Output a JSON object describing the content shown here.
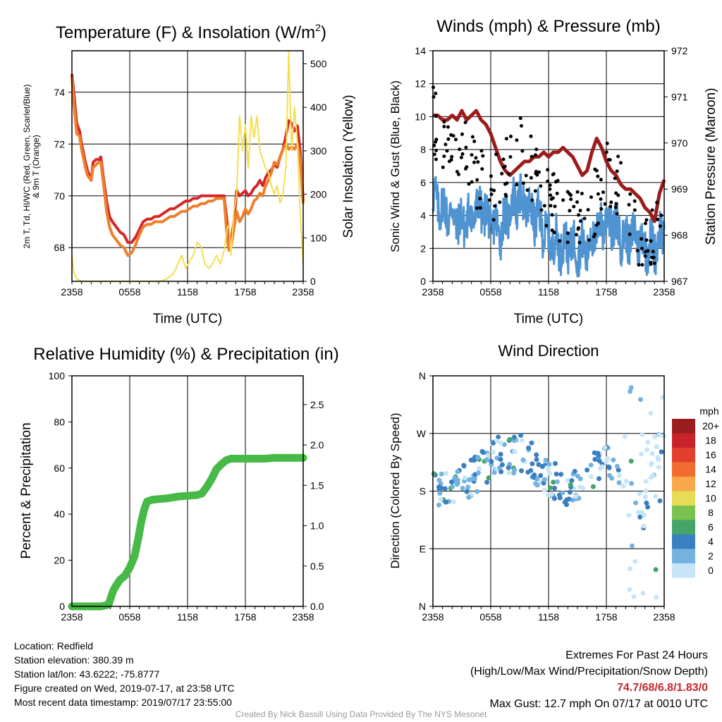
{
  "chart_data": [
    {
      "type": "line",
      "title": "Temperature (F) & Insolation (W/m2)",
      "title_main": "Temperature (F) & Insolation (W/m",
      "title_sup": "2",
      "title_end": ")",
      "xlabel": "Time (UTC)",
      "ylabel_line1": "2m T, Td, HI/WC (Red, Green, Scarlet/Blue)",
      "ylabel_line2": "& 9m T (Orange)",
      "y2label": "Solar Insolation (Yellow)",
      "x_ticks": [
        "2358",
        "0558",
        "1158",
        "1758",
        "2358"
      ],
      "ylim": [
        66.7,
        75.6
      ],
      "y_ticks": [
        "68",
        "70",
        "72",
        "74"
      ],
      "y_tick_values": [
        68,
        70,
        72,
        74
      ],
      "y2lim": [
        0,
        530
      ],
      "y2_ticks": [
        "0",
        "100",
        "200",
        "300",
        "400",
        "500"
      ],
      "y2_tick_values": [
        0,
        100,
        200,
        300,
        400,
        500
      ],
      "x_hours": [
        0,
        0.2,
        0.5,
        0.8,
        1.0,
        1.4,
        1.6,
        1.8,
        2.0,
        2.2,
        2.5,
        2.8,
        3.0,
        3.3,
        3.6,
        3.9,
        4.2,
        4.6,
        5.0,
        5.4,
        5.8,
        6.2,
        6.6,
        7.0,
        7.4,
        7.8,
        8.2,
        8.6,
        9.0,
        9.4,
        9.8,
        10.2,
        10.6,
        11.0,
        11.4,
        11.8,
        12.2,
        12.6,
        13.0,
        13.4,
        13.8,
        14.2,
        14.6,
        15.0,
        15.4,
        15.8,
        16.1,
        16.3,
        16.5,
        16.8,
        17.1,
        17.4,
        17.7,
        18.0,
        18.3,
        18.6,
        18.9,
        19.2,
        19.5,
        19.8,
        20.1,
        20.4,
        20.7,
        21.0,
        21.3,
        21.6,
        21.9,
        22.2,
        22.5,
        22.8,
        23.1,
        23.4,
        23.7,
        24.0
      ],
      "series": [
        {
          "name": "2m T",
          "color": "#d62728",
          "values": [
            74.7,
            74.0,
            72.8,
            72.5,
            72.0,
            71.3,
            71.0,
            70.8,
            70.6,
            71.3,
            71.4,
            71.4,
            71.5,
            70.6,
            69.8,
            69.2,
            69.0,
            68.8,
            68.6,
            68.5,
            68.2,
            68.2,
            68.4,
            68.7,
            69.0,
            69.1,
            69.1,
            69.2,
            69.2,
            69.3,
            69.4,
            69.5,
            69.5,
            69.6,
            69.7,
            69.8,
            69.8,
            69.9,
            69.9,
            70.0,
            70.0,
            70.0,
            70.0,
            70.0,
            70.0,
            70.0,
            69.0,
            68.0,
            68.2,
            69.0,
            70.2,
            70.0,
            70.1,
            70.2,
            70.0,
            70.1,
            70.3,
            70.4,
            70.6,
            70.4,
            70.7,
            70.9,
            71.0,
            71.2,
            71.1,
            71.5,
            71.8,
            72.3,
            72.9,
            72.8,
            72.5,
            72.7,
            71.7,
            69.8
          ]
        },
        {
          "name": "9m T",
          "color": "#ef7f2c",
          "values": [
            74.6,
            73.6,
            72.4,
            72.3,
            71.8,
            71.1,
            70.8,
            70.7,
            70.6,
            71.1,
            71.2,
            71.3,
            71.3,
            70.4,
            69.4,
            68.8,
            68.5,
            68.3,
            68.1,
            68.0,
            67.7,
            67.8,
            68.1,
            68.5,
            68.8,
            68.9,
            68.9,
            69.0,
            69.0,
            69.0,
            69.1,
            69.2,
            69.2,
            69.3,
            69.4,
            69.4,
            69.5,
            69.6,
            69.6,
            69.7,
            69.7,
            69.8,
            69.8,
            69.9,
            69.9,
            69.9,
            68.4,
            67.9,
            68.0,
            68.7,
            69.4,
            69.0,
            69.2,
            69.5,
            69.3,
            69.5,
            69.8,
            69.9,
            70.1,
            70.0,
            70.4,
            70.6,
            70.9,
            71.3,
            71.2,
            71.5,
            71.8,
            72.0,
            71.8,
            71.9,
            71.8,
            72.0,
            71.4,
            69.7
          ]
        },
        {
          "name": "Solar Insolation",
          "color": "#f5de52",
          "axis": "y2",
          "values": [
            60,
            20,
            5,
            2,
            0,
            0,
            0,
            0,
            0,
            0,
            0,
            0,
            0,
            0,
            0,
            0,
            0,
            0,
            0,
            0,
            0,
            0,
            0,
            0,
            0,
            0,
            0,
            0,
            0,
            2,
            5,
            12,
            20,
            40,
            60,
            30,
            45,
            60,
            90,
            80,
            40,
            30,
            40,
            60,
            40,
            70,
            120,
            130,
            60,
            160,
            200,
            380,
            300,
            360,
            260,
            380,
            330,
            380,
            300,
            280,
            260,
            250,
            220,
            200,
            220,
            180,
            200,
            260,
            540,
            300,
            400,
            320,
            150,
            40
          ]
        }
      ]
    },
    {
      "type": "scatter",
      "title": "Winds (mph) & Pressure (mb)",
      "xlabel": "Time (UTC)",
      "ylabel": "Sonic Wind & Gust (Blue, Black)",
      "y2label": "Station Pressure (Maroon)",
      "x_ticks": [
        "2358",
        "0558",
        "1158",
        "1758",
        "2358"
      ],
      "ylim": [
        0,
        14
      ],
      "y_ticks": [
        "0",
        "2",
        "4",
        "6",
        "8",
        "10",
        "12",
        "14"
      ],
      "y_tick_values": [
        0,
        2,
        4,
        6,
        8,
        10,
        12,
        14
      ],
      "y2lim": [
        967,
        972
      ],
      "y2_ticks": [
        "967",
        "968",
        "969",
        "970",
        "971",
        "972"
      ],
      "y2_tick_values": [
        967,
        968,
        969,
        970,
        971,
        972
      ],
      "pressure": {
        "name": "Station Pressure",
        "color": "#9c1c1c",
        "x_hours": [
          0,
          0.5,
          1.0,
          1.5,
          2.0,
          2.5,
          3.0,
          3.5,
          4.0,
          4.5,
          5.0,
          5.5,
          6.0,
          6.5,
          7.0,
          7.5,
          8.0,
          8.5,
          9.0,
          9.5,
          10.0,
          10.5,
          11.0,
          11.5,
          12.0,
          12.5,
          13.0,
          13.5,
          14.0,
          14.5,
          15.0,
          15.5,
          16.0,
          16.5,
          17.0,
          17.5,
          18.0,
          18.5,
          19.0,
          19.5,
          20.0,
          20.5,
          21.0,
          21.5,
          22.0,
          22.5,
          23.0,
          23.5,
          24.0
        ],
        "values": [
          970.6,
          970.6,
          970.5,
          970.5,
          970.6,
          970.5,
          970.7,
          970.5,
          970.6,
          970.7,
          970.5,
          970.4,
          970.2,
          969.9,
          969.6,
          969.4,
          969.3,
          969.4,
          969.5,
          969.6,
          969.6,
          969.7,
          969.7,
          969.8,
          969.7,
          969.8,
          969.8,
          969.9,
          969.8,
          969.7,
          969.5,
          969.3,
          969.4,
          969.8,
          970.1,
          969.9,
          969.6,
          969.4,
          969.3,
          969.1,
          969.0,
          969.0,
          968.9,
          968.8,
          968.6,
          968.5,
          968.3,
          968.9,
          969.2
        ]
      },
      "sonic_wind": {
        "name": "Sonic Wind",
        "color": "#4f93d1"
      },
      "gust": {
        "name": "Gust",
        "color": "#000000"
      }
    },
    {
      "type": "line",
      "title": "Relative Humidity (%) & Precipitation (in)",
      "ylabel": "Percent & Precipitation",
      "x_ticks": [
        "2358",
        "0558",
        "1158",
        "1758",
        "2358"
      ],
      "ylim": [
        0,
        100
      ],
      "y_ticks": [
        "0",
        "20",
        "40",
        "60",
        "80",
        "100"
      ],
      "y_tick_values": [
        0,
        20,
        40,
        60,
        80,
        100
      ],
      "y2lim": [
        0,
        2.857
      ],
      "y2_ticks": [
        "0.0",
        "0.5",
        "1.0",
        "1.5",
        "2.0",
        "2.5"
      ],
      "y2_tick_values": [
        0,
        0.5,
        1.0,
        1.5,
        2.0,
        2.5
      ],
      "series": [
        {
          "name": "Precipitation",
          "color": "#47b947",
          "axis": "y2",
          "x_hours": [
            0,
            1,
            2,
            3,
            3.8,
            4.3,
            4.6,
            5.0,
            5.5,
            6.0,
            6.5,
            6.9,
            7.2,
            7.5,
            7.8,
            8.3,
            9.0,
            10.0,
            11.0,
            12.0,
            13.0,
            13.5,
            14.0,
            14.5,
            15.0,
            15.5,
            16.0,
            16.5,
            17.0,
            18.0,
            19.0,
            20.0,
            21.0,
            22.0,
            23.0,
            24.0
          ],
          "values": [
            0.0,
            0.0,
            0.0,
            0.0,
            0.02,
            0.2,
            0.26,
            0.33,
            0.38,
            0.48,
            0.62,
            0.85,
            1.05,
            1.2,
            1.3,
            1.32,
            1.33,
            1.34,
            1.36,
            1.37,
            1.38,
            1.4,
            1.48,
            1.58,
            1.7,
            1.76,
            1.81,
            1.83,
            1.83,
            1.83,
            1.83,
            1.83,
            1.84,
            1.84,
            1.84,
            1.84
          ]
        }
      ]
    },
    {
      "type": "scatter",
      "title": "Wind Direction",
      "ylabel": "Direction (Colored By Speed)",
      "x_ticks": [
        "2358",
        "0558",
        "1158",
        "1758",
        "2358"
      ],
      "ylim": [
        0,
        360
      ],
      "y_ticks": [
        "N",
        "E",
        "S",
        "W",
        "N"
      ],
      "y_tick_values": [
        0,
        90,
        180,
        270,
        360
      ],
      "legend_title": "mph",
      "legend_labels": [
        "20+",
        "18",
        "16",
        "14",
        "12",
        "10",
        "8",
        "6",
        "4",
        "2",
        "0"
      ],
      "legend_colors": [
        "#9b1c1c",
        "#c8232a",
        "#e2402d",
        "#f26b2f",
        "#f8a84a",
        "#e6dc55",
        "#7bc14e",
        "#45a467",
        "#3a7fc1",
        "#74b2e0",
        "#c6e6f8"
      ],
      "legend_placement": "right"
    }
  ],
  "footer": {
    "location": "Location: Redfield",
    "elevation": "Station elevation: 380.39 m",
    "latlon": "Station lat/lon: 43.6222; -75.8777",
    "created": "Figure created on Wed, 2019-07-17, at 23:58 UTC",
    "recent": "Most recent data timestamp: 2019/07/17 23:55:00",
    "extremes_title": "Extremes For Past 24 Hours",
    "extremes_desc": "(High/Low/Max Wind/Precipitation/Snow Depth)",
    "extremes_values": "74.7/68/6.8/1.83/0",
    "max_gust": "Max Gust: 12.7 mph On 07/17 at 0010 UTC",
    "credit": "Created By Nick Bassill Using Data Provided By The NYS Mesonet"
  }
}
